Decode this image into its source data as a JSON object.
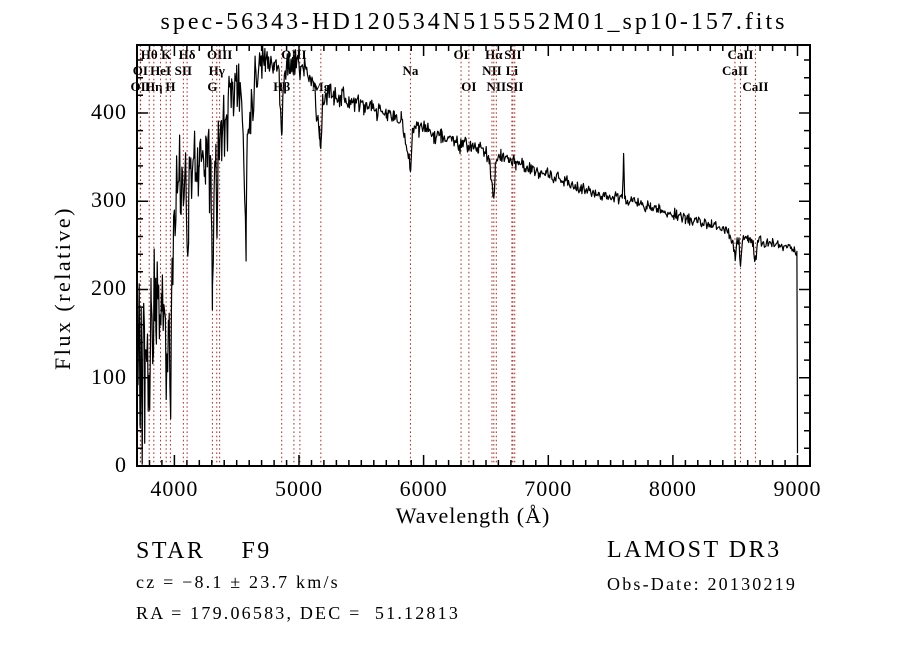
{
  "title": "spec-56343-HD120534N515552M01_sp10-157.fits",
  "axes": {
    "xlabel": "Wavelength (Å)",
    "ylabel": "Flux (relative)",
    "x_ticks": [
      4000,
      5000,
      6000,
      7000,
      8000,
      9000
    ],
    "y_ticks": [
      0,
      100,
      200,
      300,
      400
    ],
    "x_minor_step": 100,
    "y_minor_step": 20,
    "x_range": [
      3700,
      9100
    ],
    "y_range": [
      0,
      477
    ]
  },
  "colors": {
    "background": "#ffffff",
    "spectrum": "#000000",
    "marker": "#9e332b",
    "text": "#000000"
  },
  "spectral_lines": [
    {
      "label": "Hθ",
      "wavelength": 3798,
      "row": 1
    },
    {
      "label": "K",
      "wavelength": 3934,
      "row": 1
    },
    {
      "label": "Hδ",
      "wavelength": 4102,
      "row": 1
    },
    {
      "label": "OIII",
      "wavelength": 4363,
      "row": 1
    },
    {
      "label": "OIII",
      "wavelength": 4959,
      "row": 1
    },
    {
      "label": "OI",
      "wavelength": 6300,
      "row": 1
    },
    {
      "label": "Hα",
      "wavelength": 6563,
      "row": 1
    },
    {
      "label": "SII",
      "wavelength": 6716,
      "row": 1
    },
    {
      "label": "CaII",
      "wavelength": 8542,
      "row": 1
    },
    {
      "label": "OI",
      "wavelength": 3727,
      "row": 2
    },
    {
      "label": "HeI",
      "wavelength": 3889,
      "row": 2
    },
    {
      "label": "SII",
      "wavelength": 4072,
      "row": 2
    },
    {
      "label": "Hγ",
      "wavelength": 4340,
      "row": 2
    },
    {
      "label": "Na",
      "wavelength": 5894,
      "row": 2
    },
    {
      "label": "NII",
      "wavelength": 6548,
      "row": 2
    },
    {
      "label": "Li",
      "wavelength": 6708,
      "row": 2
    },
    {
      "label": "CaII",
      "wavelength": 8498,
      "row": 2
    },
    {
      "label": "OII",
      "wavelength": 3729,
      "row": 3
    },
    {
      "label": "Hη",
      "wavelength": 3835,
      "row": 3
    },
    {
      "label": "H",
      "wavelength": 3968,
      "row": 3
    },
    {
      "label": "G",
      "wavelength": 4305,
      "row": 3
    },
    {
      "label": "Hβ",
      "wavelength": 4861,
      "row": 3
    },
    {
      "label": "Mg",
      "wavelength": 5175,
      "row": 3
    },
    {
      "label": "OI",
      "wavelength": 6363,
      "row": 3
    },
    {
      "label": "NII",
      "wavelength": 6583,
      "row": 3
    },
    {
      "label": "SII",
      "wavelength": 6731,
      "row": 3
    },
    {
      "label": "CaII",
      "wavelength": 8662,
      "row": 3
    }
  ],
  "extra_markers": [
    5007
  ],
  "chart_data": {
    "type": "line",
    "title": "spec-56343-HD120534N515552M01_sp10-157.fits",
    "xlabel": "Wavelength (Å)",
    "ylabel": "Flux (relative)",
    "xlim": [
      3700,
      9100
    ],
    "ylim": [
      0,
      477
    ],
    "grid": false,
    "series": [
      {
        "name": "spectrum",
        "envelope": [
          [
            3700,
            8
          ],
          [
            3708,
            120
          ],
          [
            3718,
            200
          ],
          [
            3726,
            60
          ],
          [
            3734,
            160
          ],
          [
            3742,
            40
          ],
          [
            3752,
            170
          ],
          [
            3762,
            90
          ],
          [
            3772,
            190
          ],
          [
            3784,
            120
          ],
          [
            3798,
            85
          ],
          [
            3812,
            190
          ],
          [
            3826,
            150
          ],
          [
            3838,
            225
          ],
          [
            3852,
            140
          ],
          [
            3868,
            205
          ],
          [
            3882,
            160
          ],
          [
            3896,
            195
          ],
          [
            3910,
            180
          ],
          [
            3922,
            235
          ],
          [
            3934,
            55
          ],
          [
            3946,
            200
          ],
          [
            3956,
            170
          ],
          [
            3968,
            75
          ],
          [
            3980,
            230
          ],
          [
            3992,
            260
          ],
          [
            4000,
            285
          ],
          [
            4030,
            320
          ],
          [
            4060,
            332
          ],
          [
            4090,
            330
          ],
          [
            4102,
            228
          ],
          [
            4115,
            330
          ],
          [
            4150,
            345
          ],
          [
            4200,
            342
          ],
          [
            4250,
            360
          ],
          [
            4295,
            350
          ],
          [
            4305,
            200
          ],
          [
            4318,
            330
          ],
          [
            4333,
            352
          ],
          [
            4340,
            250
          ],
          [
            4352,
            370
          ],
          [
            4380,
            395
          ],
          [
            4420,
            420
          ],
          [
            4460,
            430
          ],
          [
            4500,
            430
          ],
          [
            4540,
            420
          ],
          [
            4575,
            255
          ],
          [
            4585,
            380
          ],
          [
            4610,
            400
          ],
          [
            4650,
            445
          ],
          [
            4690,
            458
          ],
          [
            4730,
            462
          ],
          [
            4770,
            460
          ],
          [
            4800,
            456
          ],
          [
            4840,
            445
          ],
          [
            4861,
            370
          ],
          [
            4880,
            448
          ],
          [
            4910,
            458
          ],
          [
            4940,
            452
          ],
          [
            4970,
            456
          ],
          [
            5000,
            455
          ],
          [
            5040,
            448
          ],
          [
            5080,
            440
          ],
          [
            5120,
            432
          ],
          [
            5165,
            372
          ],
          [
            5175,
            368
          ],
          [
            5190,
            405
          ],
          [
            5230,
            425
          ],
          [
            5280,
            423
          ],
          [
            5340,
            418
          ],
          [
            5400,
            414
          ],
          [
            5460,
            411
          ],
          [
            5520,
            408
          ],
          [
            5580,
            404
          ],
          [
            5640,
            401
          ],
          [
            5700,
            399
          ],
          [
            5760,
            396
          ],
          [
            5820,
            392
          ],
          [
            5880,
            350
          ],
          [
            5894,
            338
          ],
          [
            5910,
            383
          ],
          [
            5960,
            384
          ],
          [
            6020,
            380
          ],
          [
            6080,
            377
          ],
          [
            6140,
            374
          ],
          [
            6200,
            371
          ],
          [
            6260,
            369
          ],
          [
            6300,
            362
          ],
          [
            6340,
            364
          ],
          [
            6380,
            362
          ],
          [
            6440,
            360
          ],
          [
            6490,
            357
          ],
          [
            6530,
            342
          ],
          [
            6555,
            312
          ],
          [
            6563,
            304
          ],
          [
            6575,
            342
          ],
          [
            6620,
            352
          ],
          [
            6680,
            348
          ],
          [
            6740,
            344
          ],
          [
            6800,
            341
          ],
          [
            6860,
            335
          ],
          [
            6920,
            333
          ],
          [
            6980,
            330
          ],
          [
            7050,
            327
          ],
          [
            7120,
            323
          ],
          [
            7190,
            318
          ],
          [
            7260,
            314
          ],
          [
            7330,
            311
          ],
          [
            7400,
            308
          ],
          [
            7470,
            306
          ],
          [
            7540,
            304
          ],
          [
            7595,
            303
          ],
          [
            7604,
            356
          ],
          [
            7613,
            302
          ],
          [
            7680,
            300
          ],
          [
            7750,
            296
          ],
          [
            7820,
            293
          ],
          [
            7890,
            290
          ],
          [
            7960,
            287
          ],
          [
            8030,
            284
          ],
          [
            8100,
            281
          ],
          [
            8170,
            278
          ],
          [
            8240,
            275
          ],
          [
            8310,
            272
          ],
          [
            8380,
            269
          ],
          [
            8440,
            266
          ],
          [
            8480,
            258
          ],
          [
            8498,
            233
          ],
          [
            8515,
            259
          ],
          [
            8530,
            252
          ],
          [
            8542,
            227
          ],
          [
            8558,
            257
          ],
          [
            8600,
            259
          ],
          [
            8640,
            252
          ],
          [
            8662,
            231
          ],
          [
            8680,
            256
          ],
          [
            8740,
            253
          ],
          [
            8800,
            251
          ],
          [
            8860,
            249
          ],
          [
            8920,
            247
          ],
          [
            8970,
            246
          ],
          [
            8995,
            242
          ],
          [
            9000,
            15
          ]
        ],
        "noise_segments": [
          [
            3700,
            3950,
            55
          ],
          [
            3950,
            4100,
            42
          ],
          [
            4100,
            4300,
            36
          ],
          [
            4300,
            4520,
            30
          ],
          [
            4520,
            4720,
            26
          ],
          [
            4720,
            5050,
            16
          ],
          [
            5050,
            5400,
            13
          ],
          [
            5400,
            5750,
            10
          ],
          [
            5750,
            6150,
            9
          ],
          [
            6150,
            6700,
            8
          ],
          [
            6700,
            7300,
            7
          ],
          [
            7300,
            8000,
            6
          ],
          [
            8000,
            9010,
            6
          ]
        ]
      }
    ]
  },
  "annotations": {
    "class": "STAR",
    "subclass": "F9",
    "cz": "cz = −8.1 ± 23.7 km/s",
    "radec": "RA = 179.06583, DEC =  51.12813",
    "survey": "LAMOST DR3",
    "obs_date": "Obs-Date: 20130219"
  }
}
